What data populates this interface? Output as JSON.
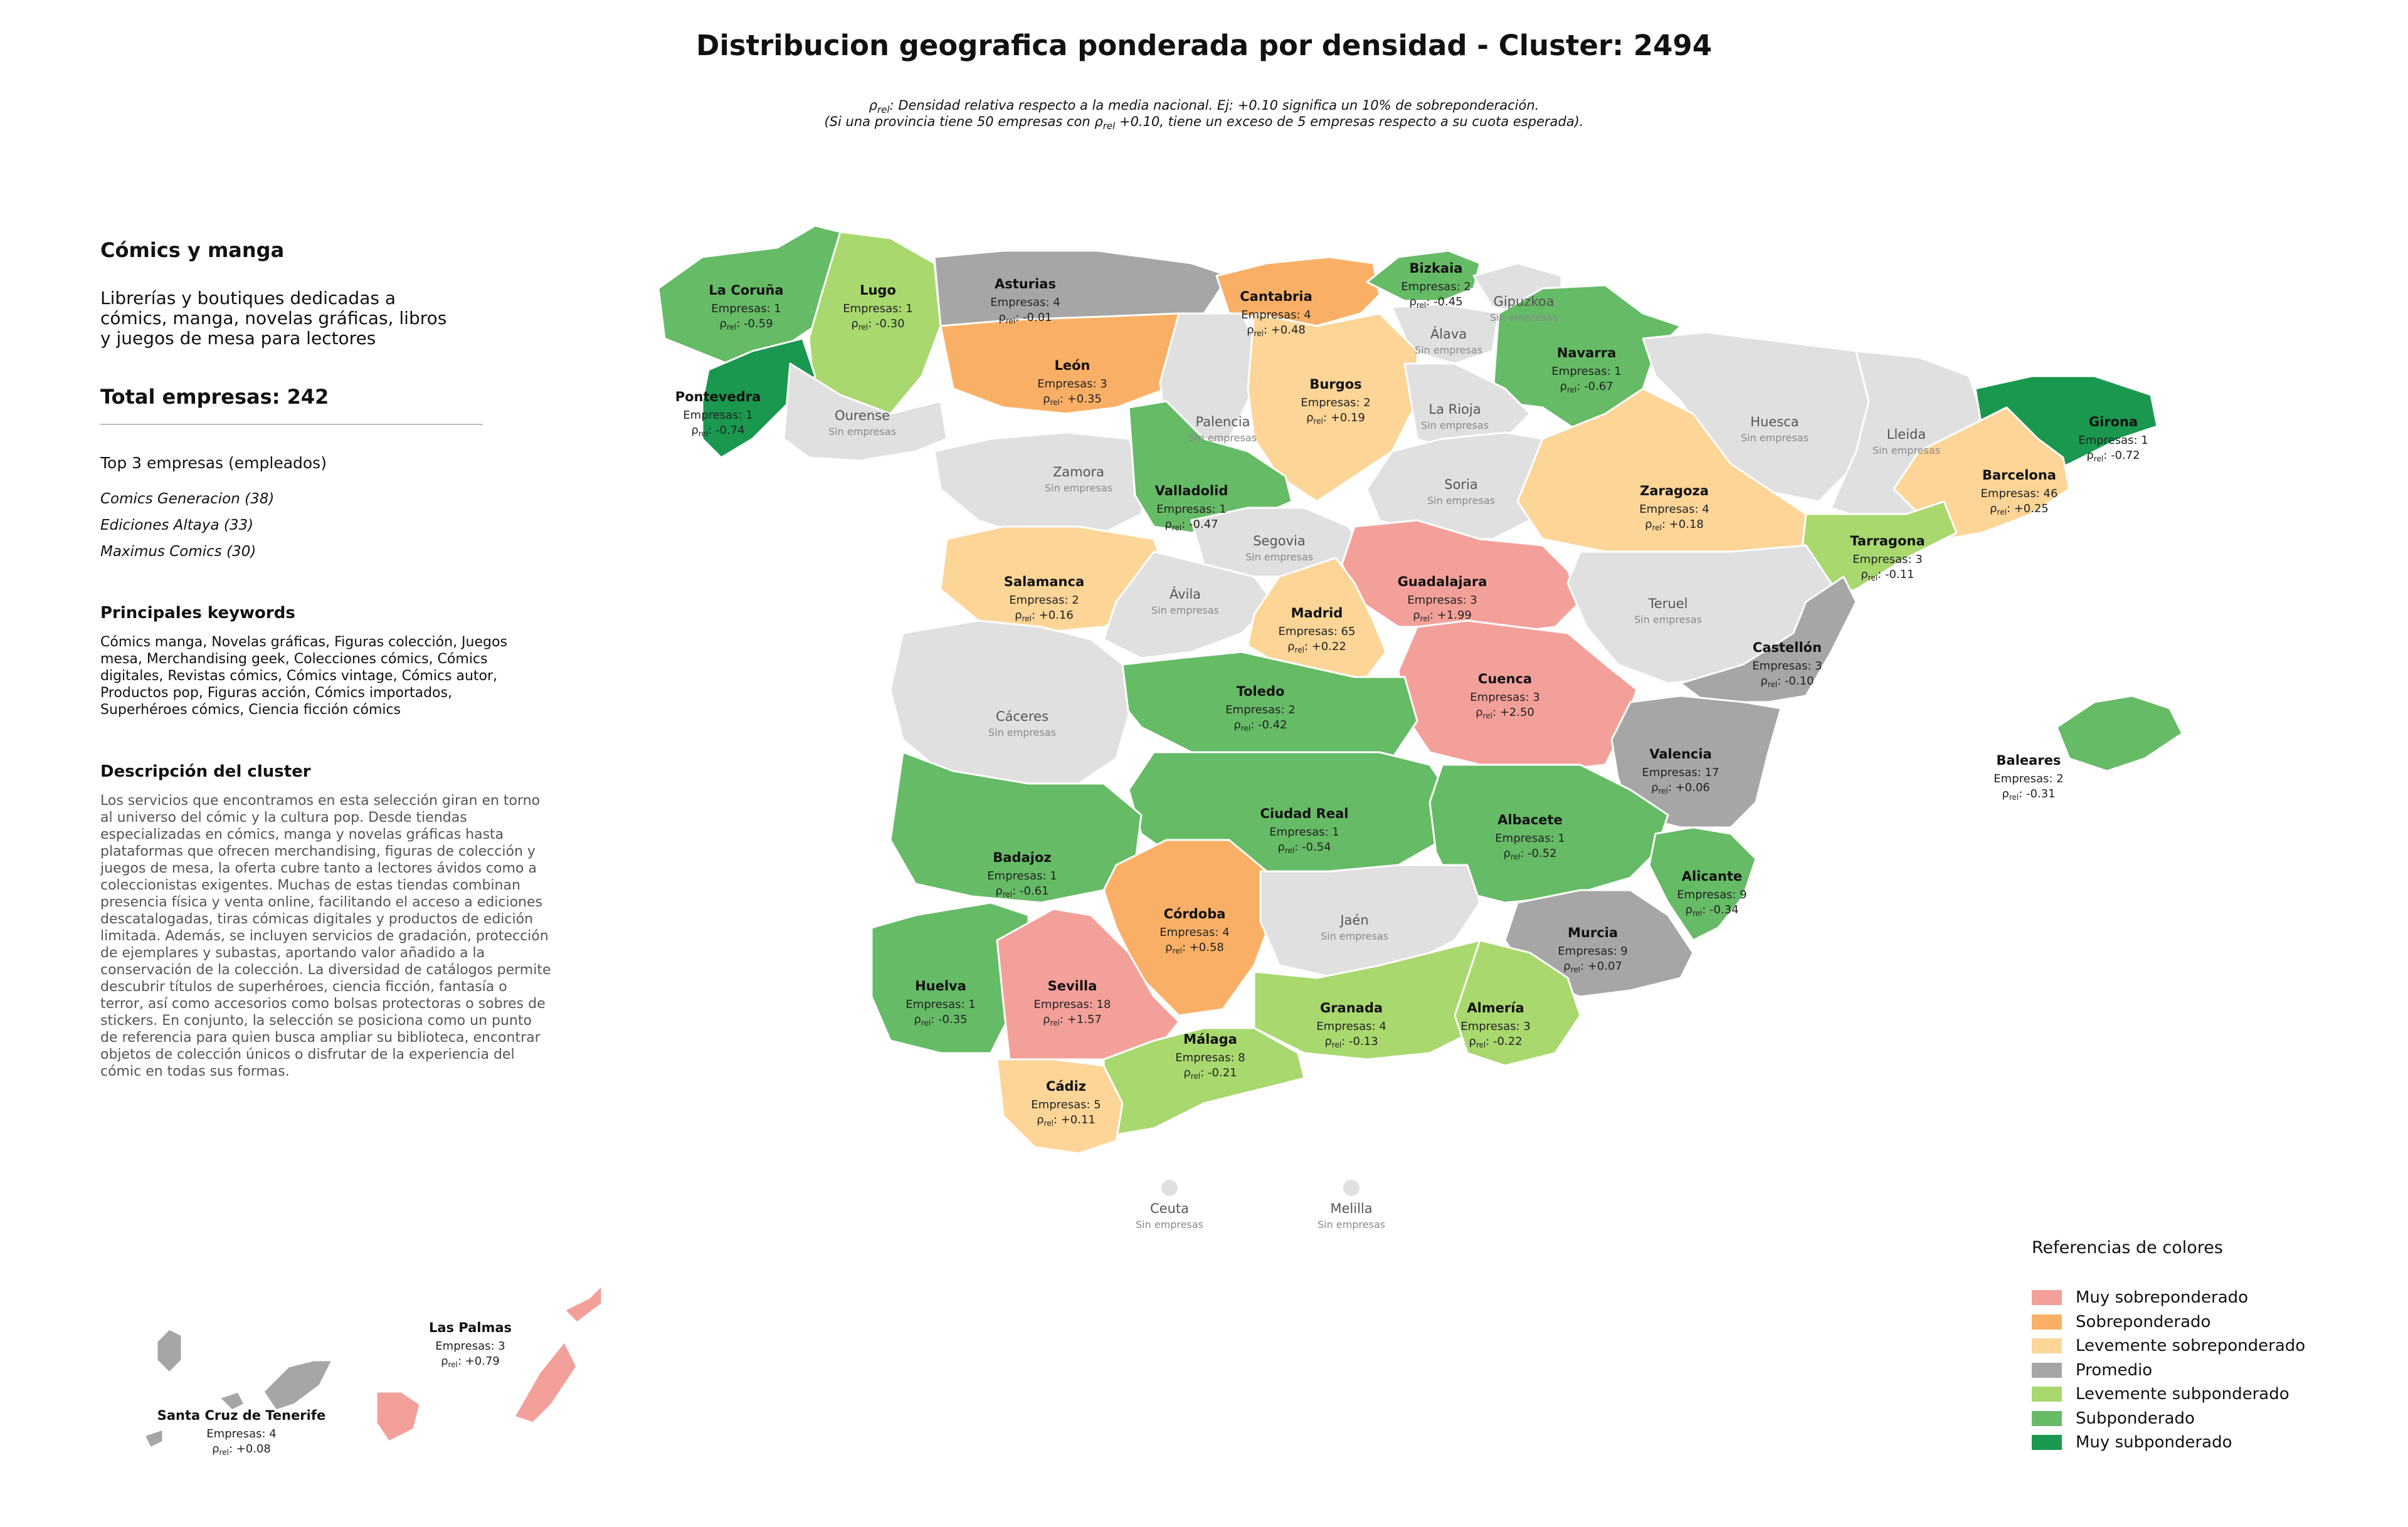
{
  "title": "Distribucion geografica ponderada por densidad - Cluster: 2494",
  "note_line1": "ρrel: Densidad relativa respecto a la media nacional. Ej: +0.10 significa un 10% de sobreponderación.",
  "note_line2": "(Si una provincia tiene 50 empresas con ρrel +0.10, tiene un exceso de 5 empresas respecto a su cuota esperada).",
  "sidebar": {
    "category_title": "Cómics y manga",
    "category_description": "Librerías y boutiques dedicadas a\ncómics, manga, novelas gráficas, libros\ny juegos de mesa para lectores",
    "total": "Total empresas: 242",
    "top_title": "Top 3 empresas (empleados)",
    "top_companies": [
      "Comics Generacion (38)",
      "Ediciones Altaya (33)",
      "Maximus Comics (30)"
    ],
    "keywords_title": "Principales keywords",
    "keywords": "Cómics manga, Novelas gráficas, Figuras colección, Juegos mesa, Merchandising geek, Colecciones cómics, Cómics digitales, Revistas cómics, Cómics vintage, Cómics autor, Productos pop, Figuras acción, Cómics importados, Superhéroes cómics, Ciencia ficción cómics",
    "description_title": "Descripción del cluster",
    "description": "Los servicios que encontramos en esta selección giran en torno al universo del cómic y la cultura pop. Desde tiendas especializadas en cómics, manga y novelas gráficas hasta plataformas que ofrecen merchandising, figuras de colección y juegos de mesa, la oferta cubre tanto a lectores ávidos como a coleccionistas exigentes. Muchas de estas tiendas combinan presencia física y venta online, facilitando el acceso a ediciones descatalogadas, tiras cómicas digitales y productos de edición limitada. Además, se incluyen servicios de gradación, protección de ejemplares y subastas, aportando valor añadido a la conservación de la colección. La diversidad de catálogos permite descubrir títulos de superhéroes, ciencia ficción, fantasía o terror, así como accesorios como bolsas protectoras o sobres de stickers. En conjunto, la selección se posiciona como un punto de referencia para quien busca ampliar su biblioteca, encontrar objetos de colección únicos o disfrutar de la experiencia del cómic en todas sus formas."
  },
  "labels": {
    "companies_prefix": "Empresas: ",
    "rho_symbol": "ρ",
    "rho_sub": "rel",
    "no_companies": "Sin empresas"
  },
  "legend": {
    "title": "Referencias de colores",
    "items": [
      {
        "label": "Muy sobreponderado",
        "color": "#f4a09a"
      },
      {
        "label": "Sobreponderado",
        "color": "#f9b066"
      },
      {
        "label": "Levemente sobreponderado",
        "color": "#fcd597"
      },
      {
        "label": "Promedio",
        "color": "#a6a6a6"
      },
      {
        "label": "Levemente subponderado",
        "color": "#a9d86e"
      },
      {
        "label": "Subponderado",
        "color": "#66bb66"
      },
      {
        "label": "Muy subponderado",
        "color": "#1a9850"
      }
    ],
    "no_data_color": "#e0e0e0"
  },
  "provinces": [
    {
      "name": "La Coruña",
      "companies": 1,
      "rho": "-0.59",
      "category": "Subponderado"
    },
    {
      "name": "Lugo",
      "companies": 1,
      "rho": "-0.30",
      "category": "Levemente subponderado"
    },
    {
      "name": "Asturias",
      "companies": 4,
      "rho": "-0.01",
      "category": "Promedio"
    },
    {
      "name": "Cantabria",
      "companies": 4,
      "rho": "+0.48",
      "category": "Sobreponderado"
    },
    {
      "name": "Bizkaia",
      "companies": 2,
      "rho": "-0.45",
      "category": "Subponderado"
    },
    {
      "name": "Gipuzkoa",
      "companies": 0,
      "rho": null,
      "category": null
    },
    {
      "name": "Álava",
      "companies": 0,
      "rho": null,
      "category": null
    },
    {
      "name": "Navarra",
      "companies": 1,
      "rho": "-0.67",
      "category": "Subponderado"
    },
    {
      "name": "Pontevedra",
      "companies": 1,
      "rho": "-0.74",
      "category": "Muy subponderado"
    },
    {
      "name": "Ourense",
      "companies": 0,
      "rho": null,
      "category": null
    },
    {
      "name": "León",
      "companies": 3,
      "rho": "+0.35",
      "category": "Sobreponderado"
    },
    {
      "name": "Palencia",
      "companies": 0,
      "rho": null,
      "category": null
    },
    {
      "name": "Burgos",
      "companies": 2,
      "rho": "+0.19",
      "category": "Levemente sobreponderado"
    },
    {
      "name": "La Rioja",
      "companies": 0,
      "rho": null,
      "category": null
    },
    {
      "name": "Huesca",
      "companies": 0,
      "rho": null,
      "category": null
    },
    {
      "name": "Lleida",
      "companies": 0,
      "rho": null,
      "category": null
    },
    {
      "name": "Girona",
      "companies": 1,
      "rho": "-0.72",
      "category": "Muy subponderado"
    },
    {
      "name": "Zamora",
      "companies": 0,
      "rho": null,
      "category": null
    },
    {
      "name": "Valladolid",
      "companies": 1,
      "rho": "-0.47",
      "category": "Subponderado"
    },
    {
      "name": "Soria",
      "companies": 0,
      "rho": null,
      "category": null
    },
    {
      "name": "Zaragoza",
      "companies": 4,
      "rho": "+0.18",
      "category": "Levemente sobreponderado"
    },
    {
      "name": "Barcelona",
      "companies": 46,
      "rho": "+0.25",
      "category": "Levemente sobreponderado"
    },
    {
      "name": "Segovia",
      "companies": 0,
      "rho": null,
      "category": null
    },
    {
      "name": "Tarragona",
      "companies": 3,
      "rho": "-0.11",
      "category": "Levemente subponderado"
    },
    {
      "name": "Salamanca",
      "companies": 2,
      "rho": "+0.16",
      "category": "Levemente sobreponderado"
    },
    {
      "name": "Guadalajara",
      "companies": 3,
      "rho": "+1.99",
      "category": "Muy sobreponderado"
    },
    {
      "name": "Ávila",
      "companies": 0,
      "rho": null,
      "category": null
    },
    {
      "name": "Madrid",
      "companies": 65,
      "rho": "+0.22",
      "category": "Levemente sobreponderado"
    },
    {
      "name": "Teruel",
      "companies": 0,
      "rho": null,
      "category": null
    },
    {
      "name": "Castellón",
      "companies": 3,
      "rho": "-0.10",
      "category": "Promedio"
    },
    {
      "name": "Cuenca",
      "companies": 3,
      "rho": "+2.50",
      "category": "Muy sobreponderado"
    },
    {
      "name": "Toledo",
      "companies": 2,
      "rho": "-0.42",
      "category": "Subponderado"
    },
    {
      "name": "Cáceres",
      "companies": 0,
      "rho": null,
      "category": null
    },
    {
      "name": "Valencia",
      "companies": 17,
      "rho": "+0.06",
      "category": "Promedio"
    },
    {
      "name": "Baleares",
      "companies": 2,
      "rho": "-0.31",
      "category": "Subponderado"
    },
    {
      "name": "Ciudad Real",
      "companies": 1,
      "rho": "-0.54",
      "category": "Subponderado"
    },
    {
      "name": "Albacete",
      "companies": 1,
      "rho": "-0.52",
      "category": "Subponderado"
    },
    {
      "name": "Badajoz",
      "companies": 1,
      "rho": "-0.61",
      "category": "Subponderado"
    },
    {
      "name": "Alicante",
      "companies": 9,
      "rho": "-0.34",
      "category": "Subponderado"
    },
    {
      "name": "Córdoba",
      "companies": 4,
      "rho": "+0.58",
      "category": "Sobreponderado"
    },
    {
      "name": "Jaén",
      "companies": 0,
      "rho": null,
      "category": null
    },
    {
      "name": "Murcia",
      "companies": 9,
      "rho": "+0.07",
      "category": "Promedio"
    },
    {
      "name": "Huelva",
      "companies": 1,
      "rho": "-0.35",
      "category": "Subponderado"
    },
    {
      "name": "Sevilla",
      "companies": 18,
      "rho": "+1.57",
      "category": "Muy sobreponderado"
    },
    {
      "name": "Granada",
      "companies": 4,
      "rho": "-0.13",
      "category": "Levemente subponderado"
    },
    {
      "name": "Almería",
      "companies": 3,
      "rho": "-0.22",
      "category": "Levemente subponderado"
    },
    {
      "name": "Málaga",
      "companies": 8,
      "rho": "-0.21",
      "category": "Levemente subponderado"
    },
    {
      "name": "Cádiz",
      "companies": 5,
      "rho": "+0.11",
      "category": "Levemente sobreponderado"
    },
    {
      "name": "Ceuta",
      "companies": 0,
      "rho": null,
      "category": null
    },
    {
      "name": "Melilla",
      "companies": 0,
      "rho": null,
      "category": null
    },
    {
      "name": "Las Palmas",
      "companies": 3,
      "rho": "+0.79",
      "category": "Muy sobreponderado"
    },
    {
      "name": "Santa Cruz de Tenerife",
      "companies": 4,
      "rho": "+0.08",
      "category": "Promedio"
    }
  ]
}
